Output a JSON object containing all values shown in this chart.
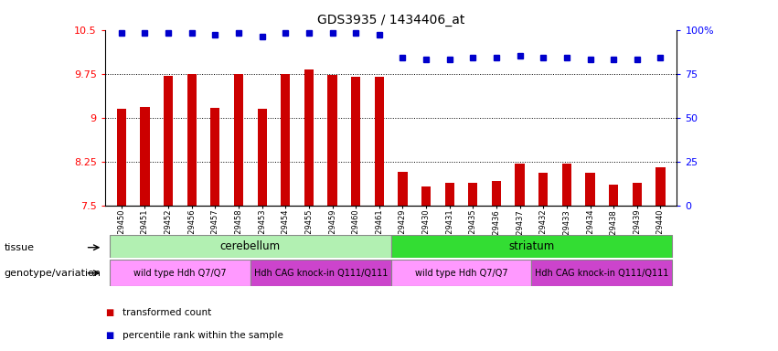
{
  "title": "GDS3935 / 1434406_at",
  "samples": [
    "GSM229450",
    "GSM229451",
    "GSM229452",
    "GSM229456",
    "GSM229457",
    "GSM229458",
    "GSM229453",
    "GSM229454",
    "GSM229455",
    "GSM229459",
    "GSM229460",
    "GSM229461",
    "GSM229429",
    "GSM229430",
    "GSM229431",
    "GSM229435",
    "GSM229436",
    "GSM229437",
    "GSM229432",
    "GSM229433",
    "GSM229434",
    "GSM229438",
    "GSM229439",
    "GSM229440"
  ],
  "bar_values": [
    9.15,
    9.18,
    9.72,
    9.75,
    9.17,
    9.75,
    9.15,
    9.75,
    9.83,
    9.73,
    9.7,
    9.69,
    8.07,
    7.82,
    7.88,
    7.88,
    7.91,
    8.22,
    8.06,
    8.22,
    8.05,
    7.85,
    7.88,
    8.15
  ],
  "percentile_values": [
    98,
    98,
    98,
    98,
    97,
    98,
    96,
    98,
    98,
    98,
    98,
    97,
    84,
    83,
    83,
    84,
    84,
    85,
    84,
    84,
    83,
    83,
    83,
    84
  ],
  "bar_color": "#cc0000",
  "dot_color": "#0000cc",
  "ylim_left": [
    7.5,
    10.5
  ],
  "ylim_right": [
    0,
    100
  ],
  "yticks_left": [
    7.5,
    8.25,
    9.0,
    9.75,
    10.5
  ],
  "yticks_right": [
    0,
    25,
    50,
    75,
    100
  ],
  "ytick_labels_left": [
    "7.5",
    "8.25",
    "9",
    "9.75",
    "10.5"
  ],
  "ytick_labels_right": [
    "0",
    "25",
    "50",
    "75",
    "100%"
  ],
  "grid_values": [
    8.25,
    9.0,
    9.75
  ],
  "tissue_row": [
    {
      "label": "cerebellum",
      "start": 0,
      "end": 11,
      "color": "#b2f0b2"
    },
    {
      "label": "striatum",
      "start": 12,
      "end": 23,
      "color": "#33dd33"
    }
  ],
  "genotype_row": [
    {
      "label": "wild type Hdh Q7/Q7",
      "start": 0,
      "end": 5,
      "color": "#ff99ff"
    },
    {
      "label": "Hdh CAG knock-in Q111/Q111",
      "start": 6,
      "end": 11,
      "color": "#cc44cc"
    },
    {
      "label": "wild type Hdh Q7/Q7",
      "start": 12,
      "end": 17,
      "color": "#ff99ff"
    },
    {
      "label": "Hdh CAG knock-in Q111/Q111",
      "start": 18,
      "end": 23,
      "color": "#cc44cc"
    }
  ],
  "legend_items": [
    {
      "label": "transformed count",
      "color": "#cc0000"
    },
    {
      "label": "percentile rank within the sample",
      "color": "#0000cc"
    }
  ],
  "row_labels": [
    "tissue",
    "genotype/variation"
  ],
  "background_color": "#ffffff",
  "plot_bg_color": "#ffffff"
}
